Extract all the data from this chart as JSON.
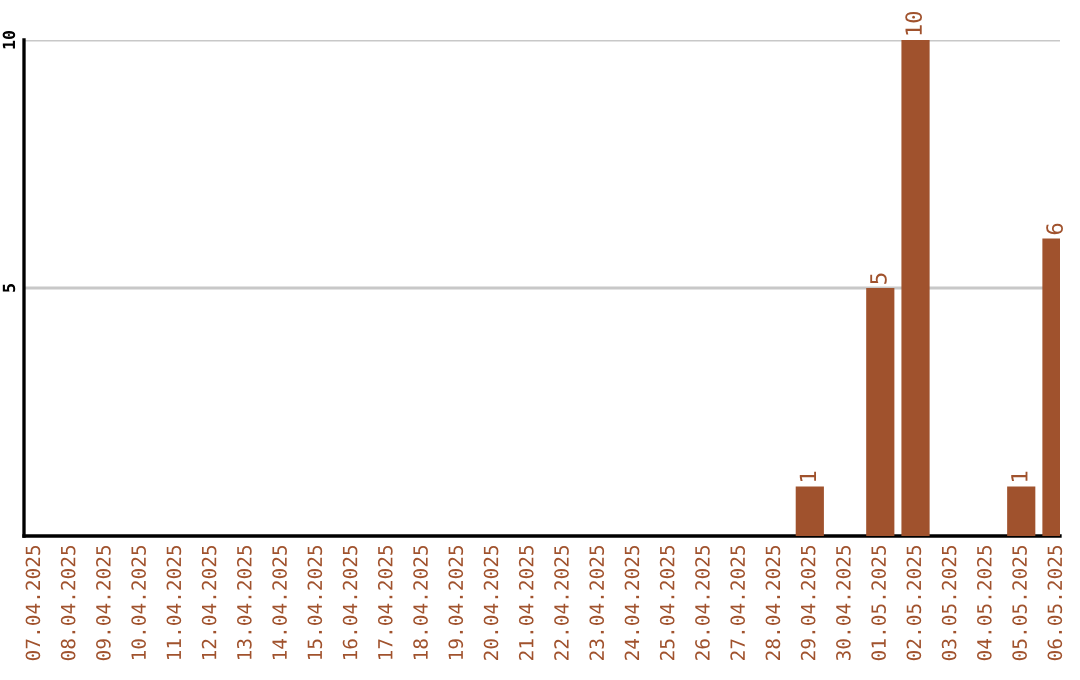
{
  "chart_data": {
    "type": "bar",
    "categories": [
      "07.04.2025",
      "08.04.2025",
      "09.04.2025",
      "10.04.2025",
      "11.04.2025",
      "12.04.2025",
      "13.04.2025",
      "14.04.2025",
      "15.04.2025",
      "16.04.2025",
      "17.04.2025",
      "18.04.2025",
      "19.04.2025",
      "20.04.2025",
      "21.04.2025",
      "22.04.2025",
      "23.04.2025",
      "24.04.2025",
      "25.04.2025",
      "26.04.2025",
      "27.04.2025",
      "28.04.2025",
      "29.04.2025",
      "30.04.2025",
      "01.05.2025",
      "02.05.2025",
      "03.05.2025",
      "04.05.2025",
      "05.05.2025",
      "06.05.2025"
    ],
    "values": [
      0,
      0,
      0,
      0,
      0,
      0,
      0,
      0,
      0,
      0,
      0,
      0,
      0,
      0,
      0,
      0,
      0,
      0,
      0,
      0,
      0,
      0,
      1,
      0,
      5,
      10,
      0,
      0,
      1,
      6
    ],
    "value_labels": [
      null,
      null,
      null,
      null,
      null,
      null,
      null,
      null,
      null,
      null,
      null,
      null,
      null,
      null,
      null,
      null,
      null,
      null,
      null,
      null,
      null,
      null,
      "1",
      null,
      "5",
      "10",
      null,
      null,
      "1",
      "6"
    ],
    "color": "#a0522d",
    "ylim": [
      0,
      10
    ],
    "yticks": [
      5,
      10
    ],
    "grid": "y",
    "legend": false
  }
}
